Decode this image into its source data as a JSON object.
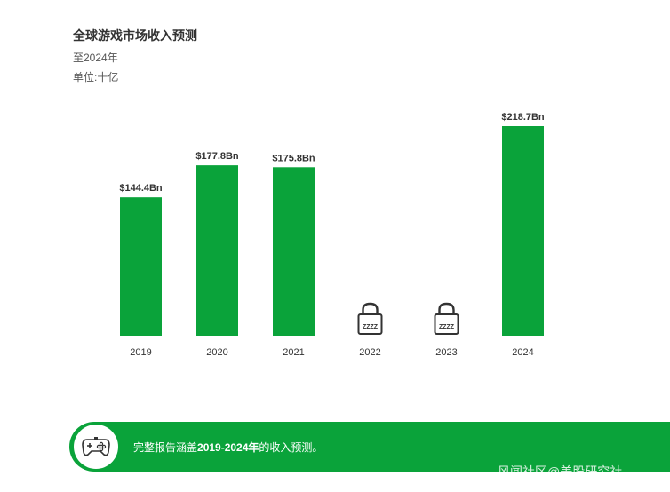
{
  "header": {
    "title": "全球游戏市场收入预测",
    "subtitle": "至2024年",
    "unit": "单位:十亿"
  },
  "chart_data": {
    "type": "bar",
    "categories": [
      "2019",
      "2020",
      "2021",
      "2022",
      "2023",
      "2024"
    ],
    "values": [
      144.4,
      177.8,
      175.8,
      null,
      null,
      218.7
    ],
    "data_labels": [
      "$144.4Bn",
      "$177.8Bn",
      "$175.8Bn",
      "",
      "",
      "$218.7Bn"
    ],
    "locked": [
      false,
      false,
      false,
      true,
      true,
      false
    ],
    "bar_color": "#0aa33a",
    "grid": false,
    "ylim": [
      0,
      218.7
    ]
  },
  "lock_icon_text": "ZZZZ",
  "banner": {
    "icon": "gamepad-icon",
    "text_prefix": "完整报告涵盖",
    "text_bold": "2019-2024年",
    "text_suffix": "的收入预测。",
    "color": "#0aa33a"
  },
  "watermark": "风闻社区@美股研究社"
}
